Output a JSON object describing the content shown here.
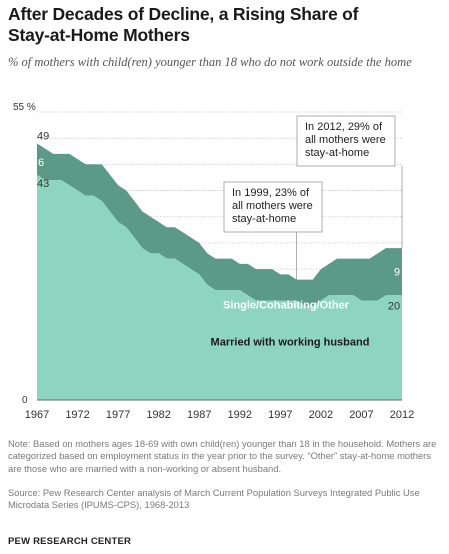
{
  "title_line1": "After Decades of Decline, a Rising Share of",
  "title_line2": "Stay-at-Home Mothers",
  "subtitle": "% of mothers with child(ren) younger than 18 who do not work outside the home",
  "note": "Note: Based on mothers ages 18-69 with own child(ren) younger than 18 in the household. Mothers are categorized based on employment status in the year prior to the survey. “Other” stay-at-home mothers are those who are married with a non-working or absent husband.",
  "source": "Source: Pew Research Center analysis of March Current Population Surveys Integrated Public Use Microdata Series (IPUMS-CPS), 1968-2013",
  "brand": "PEW RESEARCH CENTER",
  "colors": {
    "married": "#8ed5c0",
    "other": "#5a9a86",
    "grid": "#c8c8c8"
  },
  "chart_data": {
    "type": "area",
    "stacked": true,
    "x": [
      1967,
      1968,
      1969,
      1970,
      1971,
      1972,
      1973,
      1974,
      1975,
      1976,
      1977,
      1978,
      1979,
      1980,
      1981,
      1982,
      1983,
      1984,
      1985,
      1986,
      1987,
      1988,
      1989,
      1990,
      1991,
      1992,
      1993,
      1994,
      1995,
      1996,
      1997,
      1998,
      1999,
      2000,
      2001,
      2002,
      2003,
      2004,
      2005,
      2006,
      2007,
      2008,
      2009,
      2010,
      2011,
      2012
    ],
    "series": [
      {
        "name": "Married with working husband",
        "values": [
          43,
          42,
          42,
          42,
          41,
          40,
          39,
          39,
          38,
          36,
          34,
          33,
          31,
          29,
          28,
          28,
          27,
          27,
          26,
          25,
          24,
          22,
          21,
          21,
          21,
          21,
          20,
          19,
          19,
          19,
          19,
          19,
          19,
          18,
          18,
          19,
          20,
          20,
          20,
          20,
          19,
          19,
          19,
          20,
          20,
          20
        ]
      },
      {
        "name": "Single/Cohabiting/Other",
        "values": [
          6,
          6,
          5,
          5,
          6,
          6,
          6,
          6,
          7,
          7,
          7,
          7,
          7,
          7,
          7,
          6,
          6,
          6,
          6,
          6,
          6,
          6,
          6,
          6,
          6,
          5,
          6,
          6,
          6,
          6,
          5,
          5,
          4,
          5,
          5,
          6,
          6,
          7,
          7,
          7,
          8,
          8,
          9,
          9,
          9,
          9
        ]
      }
    ],
    "total_label": "49",
    "start_labels": {
      "married": "43",
      "other": "6"
    },
    "end_labels": {
      "married": "20",
      "other": "9"
    },
    "ylim": [
      0,
      55
    ],
    "ytick_labels": [
      "0",
      "55 %"
    ],
    "xtick_labels": [
      "1967",
      "1972",
      "1977",
      "1982",
      "1987",
      "1992",
      "1997",
      "2002",
      "2007",
      "2012"
    ],
    "series_labels": {
      "other": "Single/Cohabiting/Other",
      "married": "Married with working husband"
    },
    "annotations": [
      {
        "text_lines": [
          "In 1999, 23% of",
          "all mothers were",
          "stay-at-home"
        ],
        "year": 1999,
        "value": 23
      },
      {
        "text_lines": [
          "In 2012, 29% of",
          "all mothers were",
          "stay-at-home"
        ],
        "year": 2012,
        "value": 29
      }
    ]
  }
}
